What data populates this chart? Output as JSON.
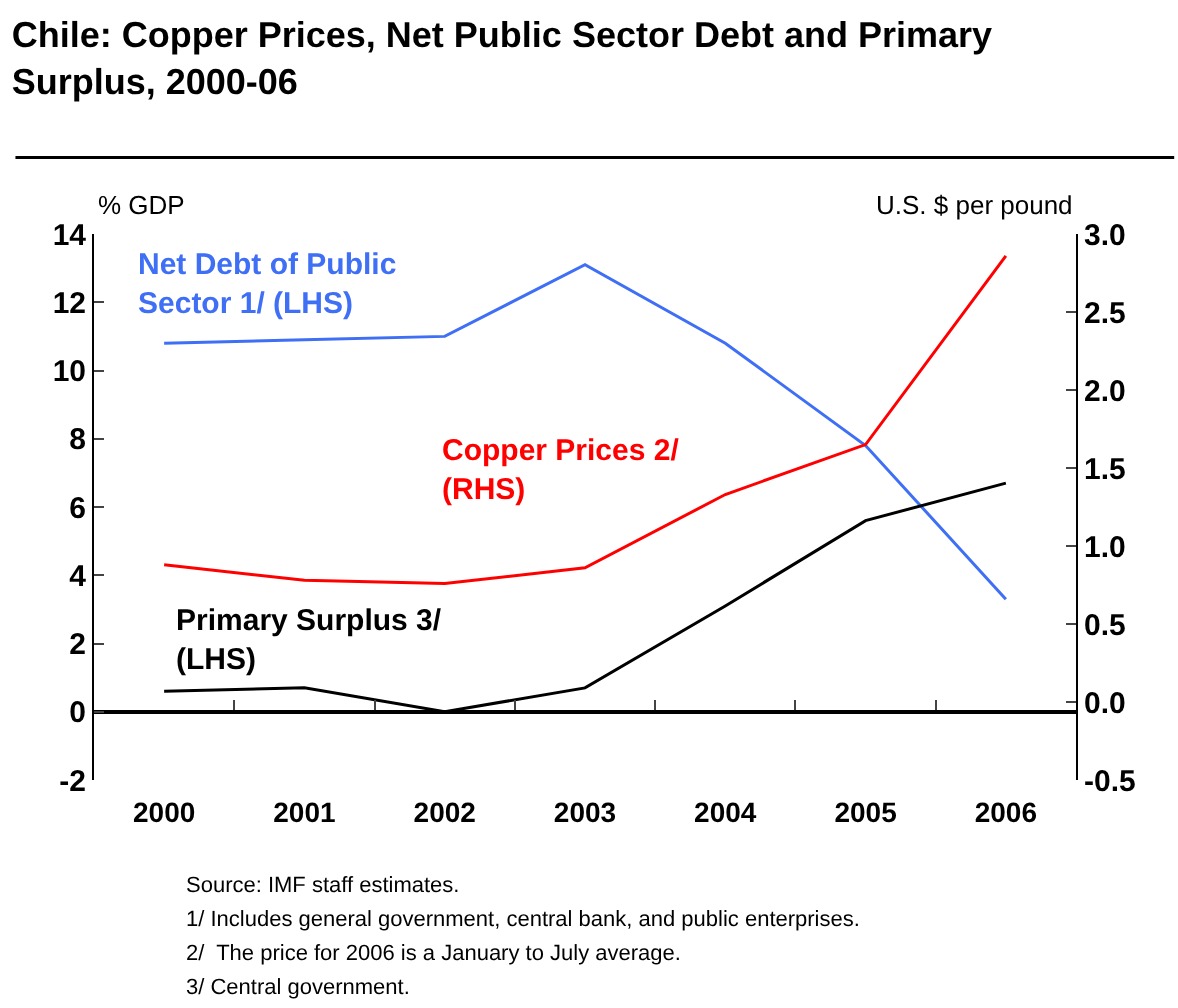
{
  "chart_data": {
    "type": "line",
    "title": "Chile: Copper Prices, Net Public Sector Debt and Primary Surplus, 2000-06",
    "ylabel": "% GDP",
    "y2label": "U.S. $ per pound",
    "categories": [
      "2000",
      "2001",
      "2002",
      "2003",
      "2004",
      "2005",
      "2006"
    ],
    "series": [
      {
        "name": "Net Debt of Public Sector 1/ (LHS)",
        "color": "#3f6ff5",
        "values": [
          10.8,
          10.9,
          11.0,
          13.1,
          10.8,
          7.8,
          3.3
        ]
      },
      {
        "name": "Copper Prices 2/ (RHS)",
        "color": "#ff0000",
        "axis": "y2",
        "values": [
          0.88,
          0.78,
          0.76,
          0.86,
          1.33,
          1.65,
          2.86
        ]
      },
      {
        "name": "Primary Surplus 3/ (LHS)",
        "color": "#000000",
        "values": [
          0.6,
          0.7,
          0.0,
          0.7,
          3.1,
          5.6,
          6.7
        ]
      }
    ],
    "ylim": [
      -2,
      14
    ],
    "yticks": [
      -2,
      0,
      2,
      4,
      6,
      8,
      10,
      12,
      14
    ],
    "y2lim": [
      -0.5,
      3.0
    ],
    "y2ticks": [
      {
        "value": -0.5,
        "label": "-0.5"
      },
      {
        "value": 0,
        "label": "0.0"
      },
      {
        "value": 0.5,
        "label": "0.5"
      },
      {
        "value": 1.0,
        "label": "1.0"
      },
      {
        "value": 1.5,
        "label": "1.5"
      },
      {
        "value": 2.0,
        "label": "2.0"
      },
      {
        "value": 2.5,
        "label": "2.5"
      },
      {
        "value": 3.0,
        "label": "3.0"
      }
    ],
    "legend": false,
    "marker": "none",
    "line_style": "solid",
    "annotations": [
      "Source: IMF staff estimates.",
      "1/ Includes general government, central bank, and public enterprises.",
      "2/  The price for 2006 is a January to July average.",
      "3/ Central government."
    ]
  }
}
